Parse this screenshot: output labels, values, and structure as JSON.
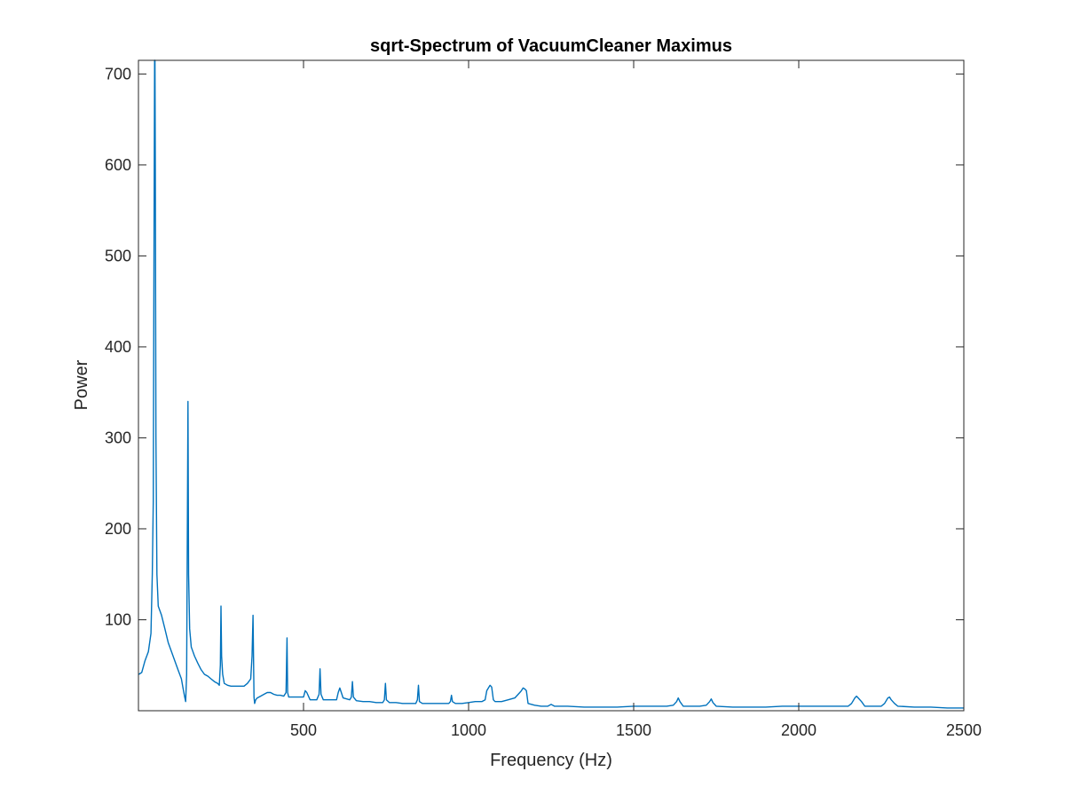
{
  "chart_data": {
    "type": "line",
    "title": "sqrt-Spectrum of VacuumCleaner Maximus",
    "xlabel": "Frequency (Hz)",
    "ylabel": "Power",
    "xlim": [
      0,
      2500
    ],
    "ylim": [
      0,
      715
    ],
    "x_ticks": [
      500,
      1000,
      1500,
      2000,
      2500
    ],
    "y_ticks": [
      100,
      200,
      300,
      400,
      500,
      600,
      700
    ],
    "grid": false,
    "legend": "none",
    "series": [
      {
        "color": "#0072BD",
        "x": [
          1,
          10,
          20,
          30,
          38,
          42,
          45,
          47,
          49,
          50,
          51,
          53,
          56,
          60,
          70,
          80,
          90,
          100,
          110,
          120,
          130,
          135,
          140,
          143,
          146,
          148,
          150,
          152,
          155,
          160,
          170,
          180,
          190,
          200,
          210,
          220,
          230,
          240,
          245,
          248,
          250,
          252,
          255,
          260,
          270,
          280,
          290,
          300,
          310,
          320,
          330,
          340,
          344,
          347,
          350,
          352,
          355,
          360,
          370,
          380,
          390,
          400,
          410,
          420,
          430,
          440,
          447,
          450,
          452,
          455,
          460,
          480,
          500,
          505,
          510,
          520,
          540,
          547,
          550,
          553,
          560,
          580,
          600,
          605,
          610,
          620,
          640,
          645,
          648,
          651,
          660,
          680,
          700,
          720,
          740,
          745,
          748,
          751,
          760,
          780,
          800,
          820,
          840,
          845,
          848,
          851,
          860,
          880,
          900,
          920,
          940,
          945,
          948,
          951,
          960,
          980,
          1000,
          1020,
          1040,
          1050,
          1055,
          1060,
          1065,
          1070,
          1075,
          1080,
          1100,
          1120,
          1140,
          1155,
          1160,
          1165,
          1170,
          1175,
          1180,
          1200,
          1220,
          1240,
          1250,
          1260,
          1280,
          1300,
          1350,
          1400,
          1450,
          1500,
          1550,
          1600,
          1620,
          1630,
          1635,
          1640,
          1650,
          1700,
          1720,
          1730,
          1735,
          1740,
          1750,
          1800,
          1850,
          1900,
          1950,
          2000,
          2050,
          2100,
          2150,
          2160,
          2170,
          2175,
          2180,
          2190,
          2200,
          2250,
          2260,
          2270,
          2275,
          2280,
          2290,
          2300,
          2350,
          2400,
          2450,
          2500
        ],
        "y": [
          40,
          42,
          55,
          65,
          85,
          150,
          230,
          500,
          715,
          715,
          600,
          300,
          150,
          115,
          105,
          90,
          75,
          65,
          55,
          45,
          35,
          25,
          15,
          10,
          40,
          200,
          340,
          150,
          90,
          70,
          60,
          52,
          45,
          40,
          38,
          35,
          32,
          30,
          28,
          50,
          115,
          60,
          40,
          30,
          28,
          27,
          27,
          27,
          27,
          27,
          30,
          35,
          60,
          105,
          15,
          8,
          12,
          14,
          16,
          18,
          20,
          20,
          18,
          17,
          17,
          16,
          20,
          80,
          20,
          15,
          15,
          15,
          15,
          22,
          20,
          12,
          12,
          18,
          46,
          18,
          12,
          12,
          12,
          20,
          25,
          14,
          12,
          15,
          32,
          15,
          11,
          10,
          10,
          9,
          9,
          12,
          30,
          12,
          9,
          9,
          8,
          8,
          8,
          12,
          28,
          10,
          8,
          8,
          8,
          8,
          8,
          10,
          17,
          10,
          8,
          8,
          9,
          10,
          10,
          12,
          22,
          25,
          28,
          26,
          12,
          10,
          10,
          12,
          14,
          20,
          22,
          25,
          24,
          22,
          8,
          6,
          5,
          5,
          7,
          5,
          5,
          5,
          4,
          4,
          4,
          5,
          5,
          5,
          6,
          10,
          14,
          10,
          5,
          5,
          6,
          10,
          13,
          9,
          5,
          4,
          4,
          4,
          5,
          5,
          5,
          5,
          5,
          8,
          14,
          16,
          14,
          10,
          5,
          5,
          8,
          14,
          15,
          12,
          8,
          5,
          4,
          4,
          3,
          3
        ]
      }
    ]
  }
}
